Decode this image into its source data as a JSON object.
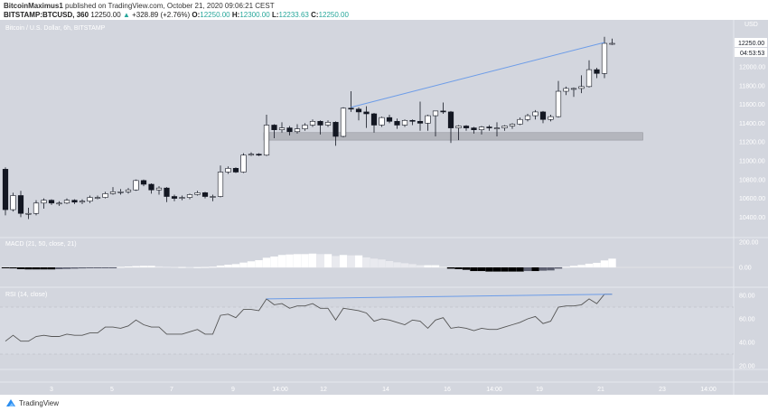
{
  "header": {
    "author": "BitcoinMaximus1",
    "published": "published on TradingView.com, October 21, 2020 09:06:21 CEST",
    "symbol": "BITSTAMP:BTCUSD, 360",
    "last": "12250.00",
    "change": "+328.89 (+2.76%)",
    "o_label": "O:",
    "o": "12250.00",
    "h_label": "H:",
    "h": "12300.00",
    "l_label": "L:",
    "l": "12233.63",
    "c_label": "C:",
    "c": "12250.00",
    "up_icon": "triangle-up-icon"
  },
  "footer": {
    "brand": "TradingView",
    "logo_icon": "tradingview-logo-icon"
  },
  "colors": {
    "background": "#d3d6de",
    "up": "#ffffff",
    "down": "#131722",
    "trendline": "#6c9ce8",
    "zone": "#a9abb1",
    "rsi_line": "#555555"
  },
  "chart_data": [
    {
      "type": "candlestick",
      "title": "Bitcoin / U.S. Dollar, 6h, BITSTAMP",
      "axis_unit": "USD",
      "last_price_label": "12250.00",
      "countdown": "04:53:53",
      "y_ticks": [
        "12000.00",
        "11800.00",
        "11600.00",
        "11400.00",
        "11200.00",
        "11000.00",
        "10800.00",
        "10600.00",
        "10400.00"
      ],
      "ylim": [
        10200,
        12400
      ],
      "x_ticks": [
        "3",
        "5",
        "7",
        "9",
        "14:00",
        "12",
        "14",
        "16",
        "14:00",
        "19",
        "21",
        "23",
        "14:00"
      ],
      "candles_ohlc": [
        [
          10910,
          10930,
          10420,
          10480
        ],
        [
          10480,
          10660,
          10460,
          10630
        ],
        [
          10630,
          10680,
          10400,
          10440
        ],
        [
          10440,
          10500,
          10380,
          10440
        ],
        [
          10440,
          10580,
          10420,
          10550
        ],
        [
          10550,
          10600,
          10490,
          10580
        ],
        [
          10580,
          10590,
          10530,
          10550
        ],
        [
          10550,
          10570,
          10520,
          10550
        ],
        [
          10550,
          10600,
          10540,
          10580
        ],
        [
          10580,
          10590,
          10540,
          10560
        ],
        [
          10560,
          10590,
          10540,
          10570
        ],
        [
          10570,
          10630,
          10550,
          10610
        ],
        [
          10610,
          10630,
          10590,
          10610
        ],
        [
          10610,
          10670,
          10600,
          10650
        ],
        [
          10650,
          10720,
          10640,
          10670
        ],
        [
          10670,
          10700,
          10640,
          10670
        ],
        [
          10670,
          10710,
          10650,
          10690
        ],
        [
          10690,
          10800,
          10680,
          10790
        ],
        [
          10790,
          10800,
          10730,
          10750
        ],
        [
          10750,
          10760,
          10650,
          10690
        ],
        [
          10690,
          10730,
          10640,
          10710
        ],
        [
          10710,
          10720,
          10560,
          10620
        ],
        [
          10620,
          10640,
          10570,
          10600
        ],
        [
          10600,
          10630,
          10580,
          10610
        ],
        [
          10610,
          10650,
          10590,
          10640
        ],
        [
          10640,
          10680,
          10630,
          10660
        ],
        [
          10660,
          10670,
          10600,
          10620
        ],
        [
          10620,
          10640,
          10570,
          10620
        ],
        [
          10620,
          10950,
          10610,
          10880
        ],
        [
          10880,
          10940,
          10860,
          10920
        ],
        [
          10920,
          10930,
          10870,
          10880
        ],
        [
          10880,
          11080,
          10870,
          11060
        ],
        [
          11060,
          11090,
          11050,
          11070
        ],
        [
          11070,
          11080,
          11050,
          11060
        ],
        [
          11060,
          11490,
          11050,
          11380
        ],
        [
          11380,
          11390,
          11240,
          11330
        ],
        [
          11330,
          11410,
          11300,
          11350
        ],
        [
          11350,
          11370,
          11270,
          11310
        ],
        [
          11310,
          11390,
          11290,
          11340
        ],
        [
          11340,
          11400,
          11320,
          11380
        ],
        [
          11380,
          11440,
          11360,
          11420
        ],
        [
          11420,
          11430,
          11280,
          11380
        ],
        [
          11380,
          11430,
          11360,
          11410
        ],
        [
          11410,
          11420,
          11160,
          11260
        ],
        [
          11260,
          11570,
          11250,
          11560
        ],
        [
          11560,
          11740,
          11520,
          11550
        ],
        [
          11550,
          11570,
          11430,
          11520
        ],
        [
          11520,
          11580,
          11350,
          11500
        ],
        [
          11500,
          11510,
          11300,
          11380
        ],
        [
          11380,
          11470,
          11360,
          11460
        ],
        [
          11460,
          11490,
          11400,
          11420
        ],
        [
          11420,
          11450,
          11340,
          11380
        ],
        [
          11380,
          11440,
          11360,
          11430
        ],
        [
          11430,
          11440,
          11380,
          11420
        ],
        [
          11420,
          11630,
          11320,
          11400
        ],
        [
          11400,
          11490,
          11320,
          11480
        ],
        [
          11480,
          11530,
          11260,
          11530
        ],
        [
          11530,
          11620,
          11500,
          11520
        ],
        [
          11520,
          11530,
          11190,
          11350
        ],
        [
          11350,
          11380,
          11220,
          11370
        ],
        [
          11370,
          11380,
          11320,
          11350
        ],
        [
          11350,
          11360,
          11290,
          11330
        ],
        [
          11330,
          11370,
          11280,
          11360
        ],
        [
          11360,
          11380,
          11320,
          11350
        ],
        [
          11350,
          11410,
          11260,
          11350
        ],
        [
          11350,
          11380,
          11320,
          11370
        ],
        [
          11370,
          11400,
          11340,
          11390
        ],
        [
          11390,
          11460,
          11380,
          11440
        ],
        [
          11440,
          11500,
          11420,
          11480
        ],
        [
          11480,
          11540,
          11440,
          11520
        ],
        [
          11520,
          11530,
          11400,
          11440
        ],
        [
          11440,
          11490,
          11420,
          11470
        ],
        [
          11470,
          11850,
          11460,
          11740
        ],
        [
          11740,
          11790,
          11700,
          11770
        ],
        [
          11770,
          11780,
          11680,
          11770
        ],
        [
          11770,
          11910,
          11720,
          11790
        ],
        [
          11790,
          12070,
          11780,
          11970
        ],
        [
          11970,
          11990,
          11880,
          11930
        ],
        [
          11930,
          12320,
          11880,
          12250
        ],
        [
          12250,
          12300,
          12233.63,
          12250
        ]
      ],
      "annotations": {
        "support_zone": {
          "from": 11220,
          "to": 11300,
          "start_candle": 34,
          "end_candle": 83
        },
        "trendline": {
          "from_candle": 45,
          "from_price": 11570,
          "to_candle": 78,
          "to_price": 12260
        }
      }
    },
    {
      "type": "bar",
      "title": "MACD (21, 50, close, 21)",
      "y_ticks": [
        "200.00",
        "0.00"
      ],
      "histogram": [
        -3,
        -8,
        -14,
        -16,
        -16,
        -16,
        -16,
        -14,
        -12,
        -10,
        -8,
        -6,
        -5,
        -4,
        -2,
        4,
        7,
        10,
        12,
        12,
        8,
        5,
        3,
        3,
        2,
        2,
        3,
        5,
        14,
        21,
        26,
        38,
        48,
        57,
        76,
        86,
        98,
        102,
        105,
        105,
        109,
        105,
        105,
        90,
        98,
        95,
        95,
        79,
        69,
        62,
        50,
        40,
        33,
        26,
        17,
        17,
        17,
        7,
        -10,
        -14,
        -19,
        -29,
        -29,
        -33,
        -33,
        -33,
        -33,
        -33,
        -29,
        -29,
        -26,
        -24,
        -10,
        5,
        12,
        19,
        29,
        36,
        55,
        69
      ]
    },
    {
      "type": "line",
      "title": "RSI (14, close)",
      "y_ticks": [
        "80.00",
        "60.00",
        "40.00",
        "20.00"
      ],
      "bands": [
        70,
        30
      ],
      "values": [
        41,
        46,
        41,
        41,
        45,
        46,
        45,
        45,
        47,
        46,
        46,
        48,
        48,
        53,
        53,
        52,
        54,
        59,
        55,
        53,
        53,
        47,
        47,
        47,
        49,
        51,
        47,
        47,
        63,
        64,
        61,
        68,
        68,
        67,
        77,
        72,
        73,
        69,
        71,
        71,
        73,
        69,
        69,
        59,
        69,
        68,
        67,
        65,
        58,
        60,
        59,
        57,
        55,
        59,
        58,
        52,
        59,
        61,
        52,
        53,
        52,
        50,
        52,
        51,
        51,
        53,
        55,
        57,
        60,
        62,
        56,
        58,
        70,
        71,
        71,
        72,
        77,
        73,
        81,
        81
      ],
      "trendline": {
        "from_candle": 34,
        "from_value": 77,
        "to_candle": 79,
        "to_value": 81
      }
    }
  ]
}
